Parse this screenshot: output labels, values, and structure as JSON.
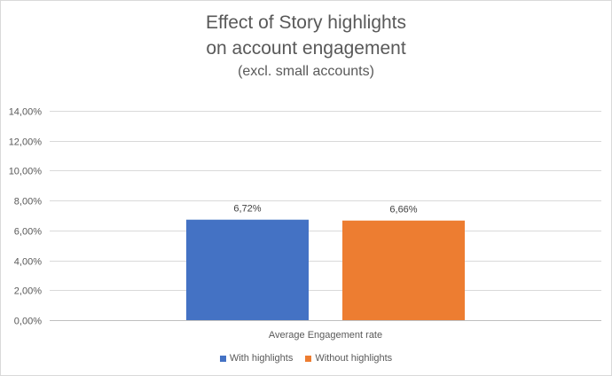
{
  "chart_data": {
    "type": "bar",
    "title_lines": [
      "Effect of Story highlights",
      "on account engagement"
    ],
    "subtitle": "(excl. small accounts)",
    "categories": [
      "Average Engagement rate"
    ],
    "series": [
      {
        "name": "With highlights",
        "values": [
          6.72
        ],
        "label": "6,72%",
        "color": "#4472c4"
      },
      {
        "name": "Without highlights",
        "values": [
          6.66
        ],
        "label": "6,66%",
        "color": "#ed7d31"
      }
    ],
    "ylim": [
      0,
      14
    ],
    "yticks": [
      {
        "value": 0,
        "label": "0,00%"
      },
      {
        "value": 2,
        "label": "2,00%"
      },
      {
        "value": 4,
        "label": "4,00%"
      },
      {
        "value": 6,
        "label": "6,00%"
      },
      {
        "value": 8,
        "label": "8,00%"
      },
      {
        "value": 10,
        "label": "10,00%"
      },
      {
        "value": 12,
        "label": "12,00%"
      },
      {
        "value": 14,
        "label": "14,00%"
      }
    ],
    "grid": true,
    "legend_position": "bottom"
  }
}
